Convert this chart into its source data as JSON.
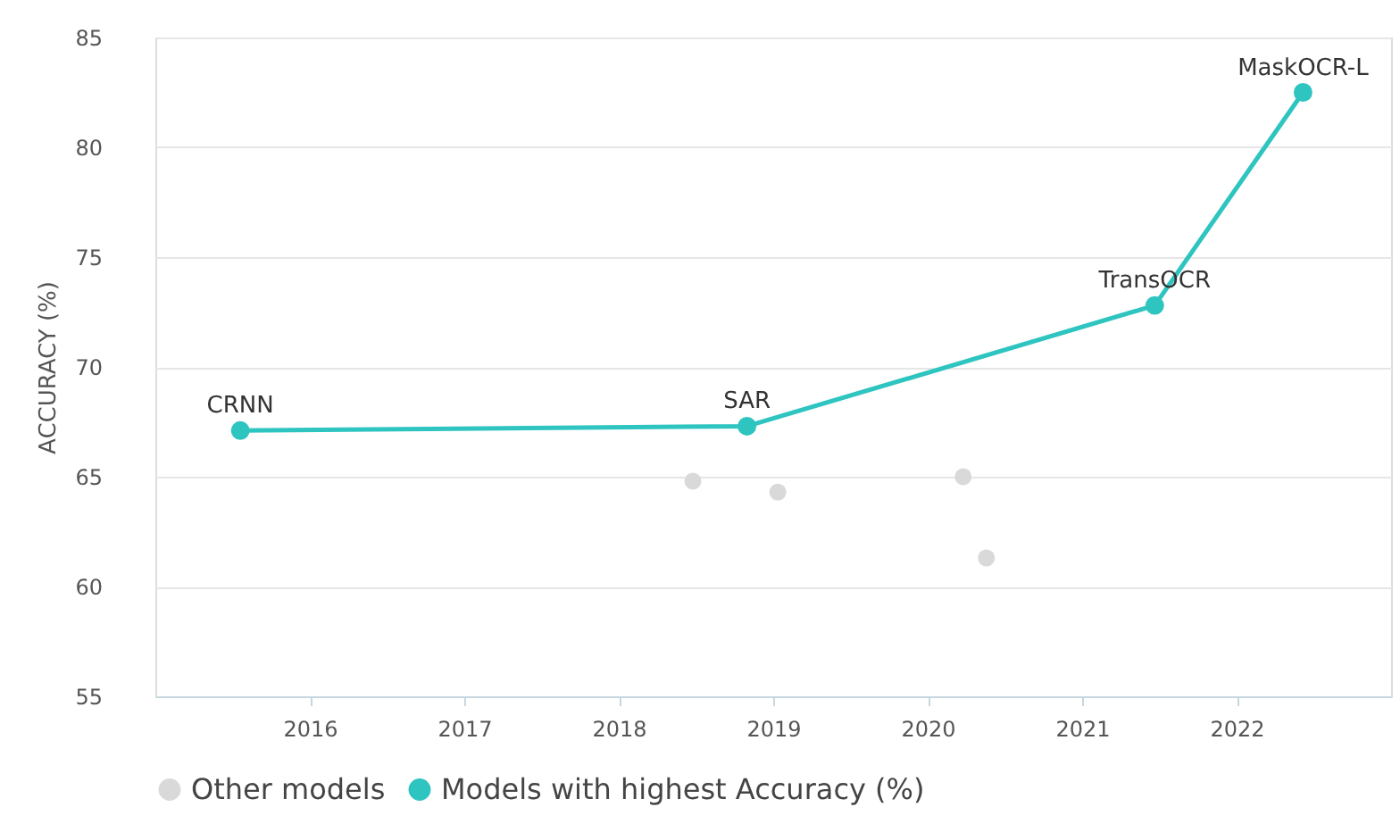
{
  "chart_data": {
    "type": "scatter",
    "ylabel": "ACCURACY (%)",
    "xlim": [
      2015,
      2023
    ],
    "xticks": [
      2016,
      2017,
      2018,
      2019,
      2020,
      2021,
      2022
    ],
    "ylim": [
      55,
      85
    ],
    "yticks": [
      55,
      60,
      65,
      70,
      75,
      80,
      85
    ],
    "grid": "y",
    "legend": "bottom",
    "marker": "circle",
    "series": [
      {
        "name": "Other models",
        "color": "#d9d9d9",
        "x": [
          2018.48,
          2019.03,
          2020.23,
          2020.38
        ],
        "values": [
          64.8,
          64.3,
          65.0,
          61.3
        ]
      },
      {
        "name": "Models with highest Accuracy (%)",
        "type": "line",
        "color": "#2ec4c0",
        "x": [
          2015.55,
          2018.83,
          2021.47,
          2022.43
        ],
        "values": [
          67.1,
          67.3,
          72.8,
          82.5
        ]
      }
    ],
    "annotations": [
      {
        "text": "CRNN",
        "x": 2015.55,
        "y": 67.1
      },
      {
        "text": "SAR",
        "x": 2018.83,
        "y": 67.3
      },
      {
        "text": "TransOCR",
        "x": 2021.47,
        "y": 72.8
      },
      {
        "text": "MaskOCR-L",
        "x": 2022.43,
        "y": 82.5
      }
    ]
  }
}
